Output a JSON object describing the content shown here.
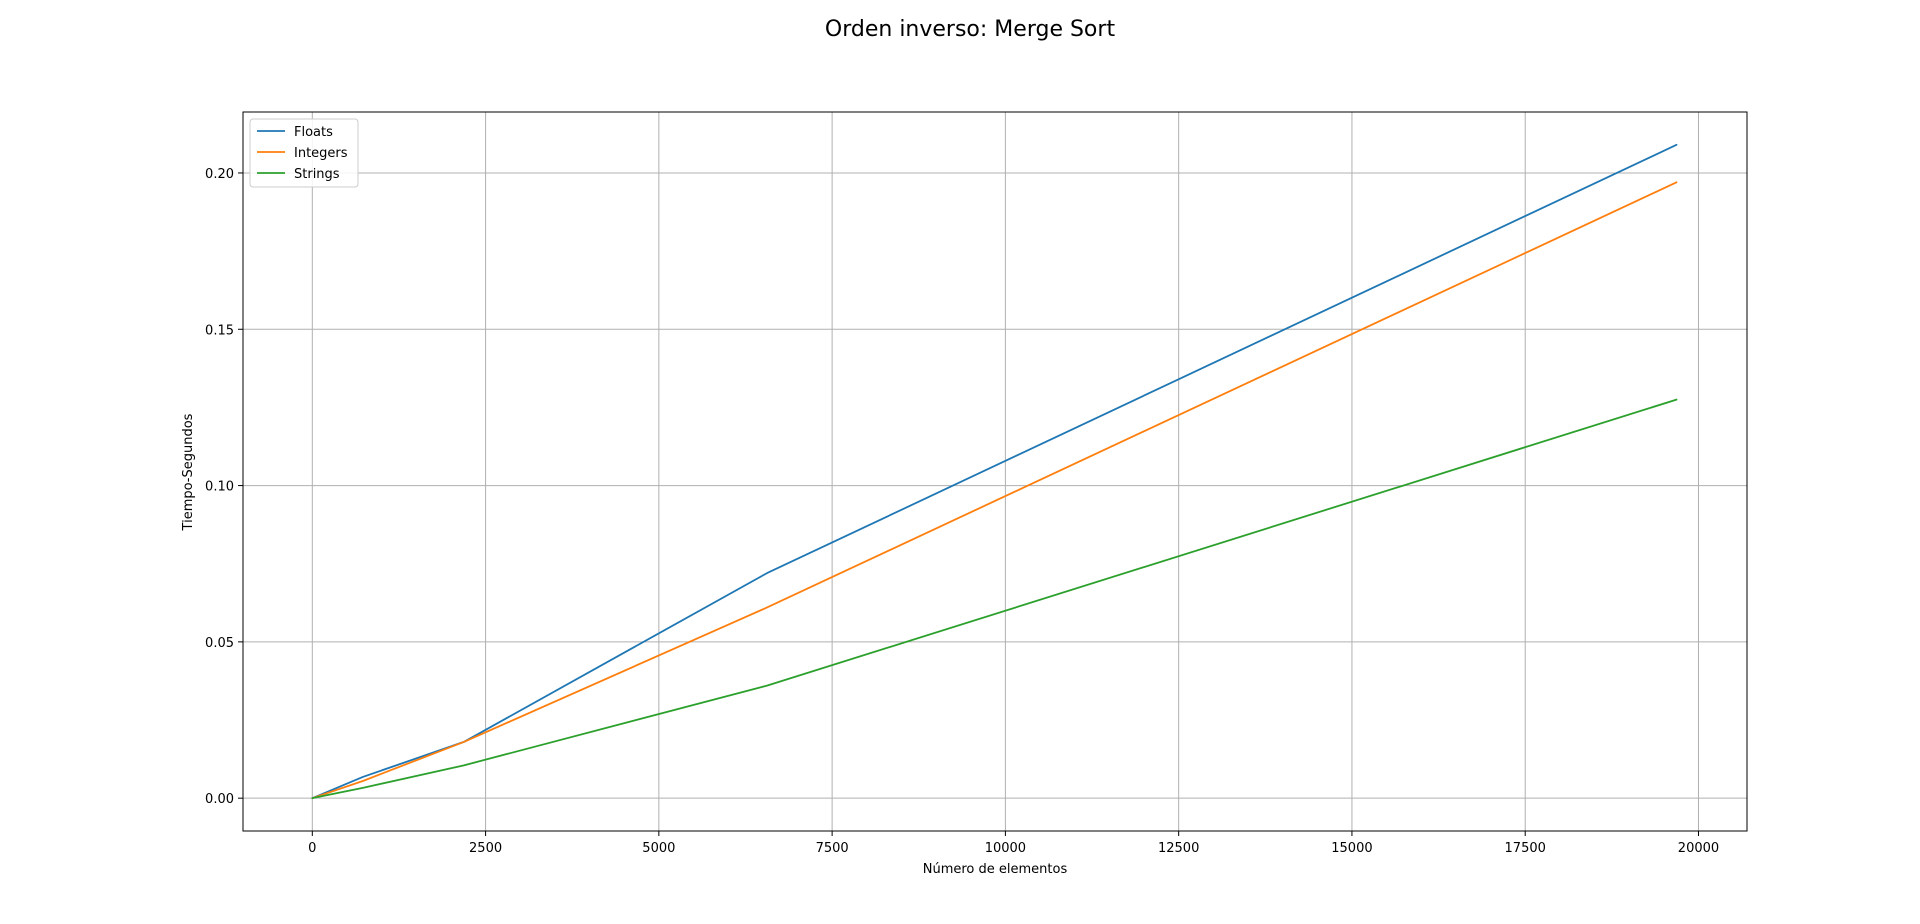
{
  "chart_data": {
    "type": "line",
    "title": "Orden inverso: Merge Sort",
    "xlabel": "Número de elementos",
    "ylabel": "Tiempo-Segundos",
    "xlim": [
      -1000,
      20700
    ],
    "ylim": [
      -0.0105,
      0.2195
    ],
    "xticks": [
      0,
      2500,
      5000,
      7500,
      10000,
      12500,
      15000,
      17500,
      20000
    ],
    "xtick_labels": [
      "0",
      "2500",
      "5000",
      "7500",
      "10000",
      "12500",
      "15000",
      "17500",
      "20000"
    ],
    "yticks": [
      0.0,
      0.05,
      0.1,
      0.15,
      0.2
    ],
    "ytick_labels": [
      "0.00",
      "0.05",
      "0.10",
      "0.15",
      "0.20"
    ],
    "grid": true,
    "legend_position": "top-left",
    "series": [
      {
        "name": "Floats",
        "color": "#1f77b4",
        "x": [
          0,
          729,
          2187,
          6561,
          19683
        ],
        "y": [
          0.0,
          0.0068,
          0.018,
          0.072,
          0.209
        ]
      },
      {
        "name": "Integers",
        "color": "#ff7f0e",
        "x": [
          0,
          729,
          2187,
          6561,
          19683
        ],
        "y": [
          0.0,
          0.0055,
          0.018,
          0.061,
          0.197
        ]
      },
      {
        "name": "Strings",
        "color": "#2ca02c",
        "x": [
          0,
          729,
          2187,
          6561,
          19683
        ],
        "y": [
          0.0,
          0.0033,
          0.0105,
          0.036,
          0.1275
        ]
      }
    ]
  }
}
